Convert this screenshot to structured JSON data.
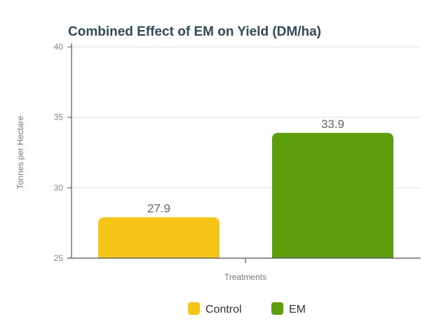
{
  "chart_data": {
    "type": "bar",
    "title": "Combined Effect of EM on Yield (DM/ha)",
    "xlabel": "Treatments",
    "ylabel": "Tonnes per Hectare",
    "ylim": [
      25,
      40
    ],
    "yticks": [
      "25",
      "30",
      "35",
      "40"
    ],
    "grid": true,
    "legend_position": "bottom",
    "series": [
      {
        "name": "Control",
        "value": 27.9,
        "label": "27.9",
        "color": "#f5c518"
      },
      {
        "name": "EM",
        "value": 33.9,
        "label": "33.9",
        "color": "#5e9e0a"
      }
    ]
  }
}
